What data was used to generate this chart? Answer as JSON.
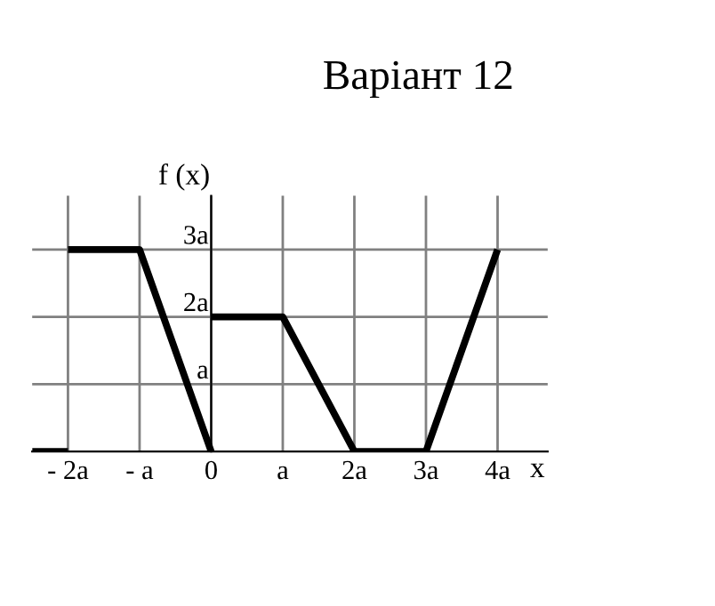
{
  "chart_data": {
    "type": "line",
    "title": "Варіант 12",
    "xlabel": "x",
    "ylabel": "f (x)",
    "series": [
      {
        "color": "#000000",
        "x": [
          -2.5,
          -2
        ],
        "values": [
          0,
          0
        ]
      },
      {
        "color": "#000000",
        "x": [
          -2,
          -1,
          0
        ],
        "values": [
          3,
          3,
          0
        ]
      },
      {
        "color": "#000000",
        "x": [
          0,
          1,
          2,
          3,
          4
        ],
        "values": [
          2,
          2,
          0,
          0,
          3
        ]
      }
    ],
    "xlim": [
      -2.5,
      4.7
    ],
    "ylim": [
      0,
      3.8
    ],
    "xticks": [
      {
        "value": -2,
        "label": "- 2a"
      },
      {
        "value": -1,
        "label": "- a"
      },
      0,
      {
        "value": 1,
        "label": "a"
      },
      {
        "value": 2,
        "label": "2a"
      },
      {
        "value": 3,
        "label": "3a"
      },
      {
        "value": 4,
        "label": "4a"
      }
    ],
    "yticks": [
      {
        "value": 1,
        "label": "a"
      },
      {
        "value": 2,
        "label": "2a"
      },
      {
        "value": 3,
        "label": "3a"
      }
    ],
    "grid": true,
    "marker": "none",
    "line_style": "solid"
  }
}
